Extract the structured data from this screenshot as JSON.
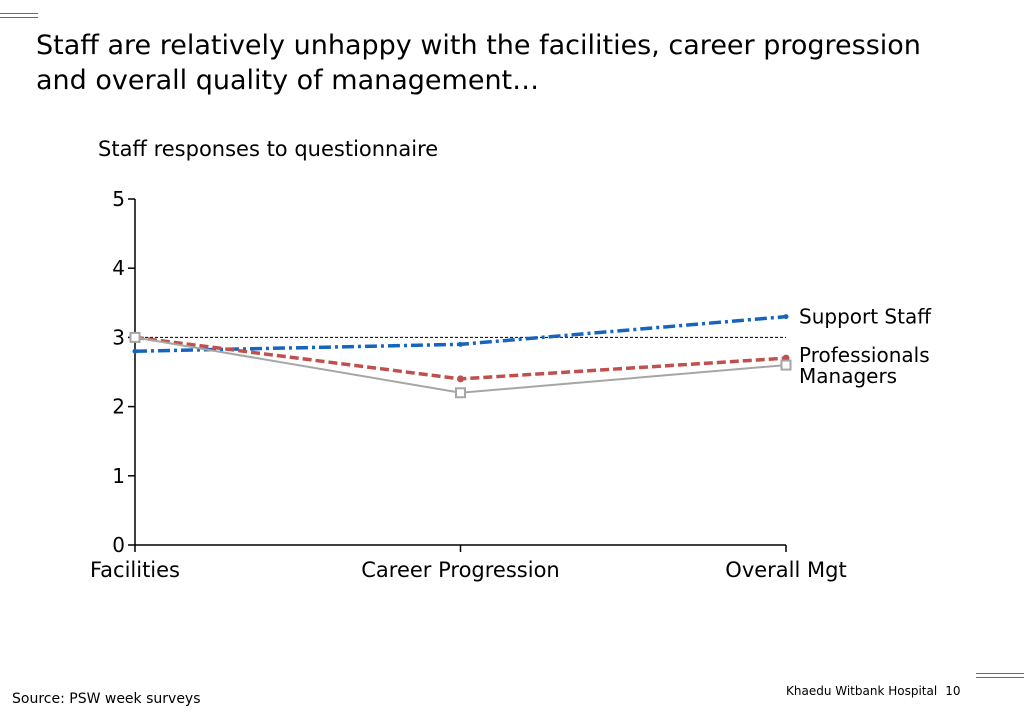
{
  "slide": {
    "title": "Staff are relatively unhappy with the facilities, career progression and overall quality of management…",
    "source": "Source: PSW week surveys",
    "footer_org": "Khaedu Witbank Hospital",
    "page_number": "10"
  },
  "chart_data": {
    "type": "line",
    "title": "Staff responses to questionnaire",
    "categories": [
      "Facilities",
      "Career Progression",
      "Overall Mgt"
    ],
    "ylim": [
      0,
      5
    ],
    "yticks": [
      0,
      1,
      2,
      3,
      4,
      5
    ],
    "reference_line": 3,
    "grid": false,
    "legend": "inline-right",
    "series": [
      {
        "name": "Support Staff",
        "values": [
          2.8,
          2.9,
          3.3
        ],
        "color": "#1565c0",
        "style": "dash-dot",
        "marker": "star"
      },
      {
        "name": "Professionals",
        "values": [
          3.0,
          2.4,
          2.7
        ],
        "color": "#c0504d",
        "style": "dashed",
        "marker": "dot"
      },
      {
        "name": "Managers",
        "values": [
          3.0,
          2.2,
          2.6
        ],
        "color": "#a6a6a6",
        "style": "solid",
        "marker": "square"
      }
    ]
  }
}
